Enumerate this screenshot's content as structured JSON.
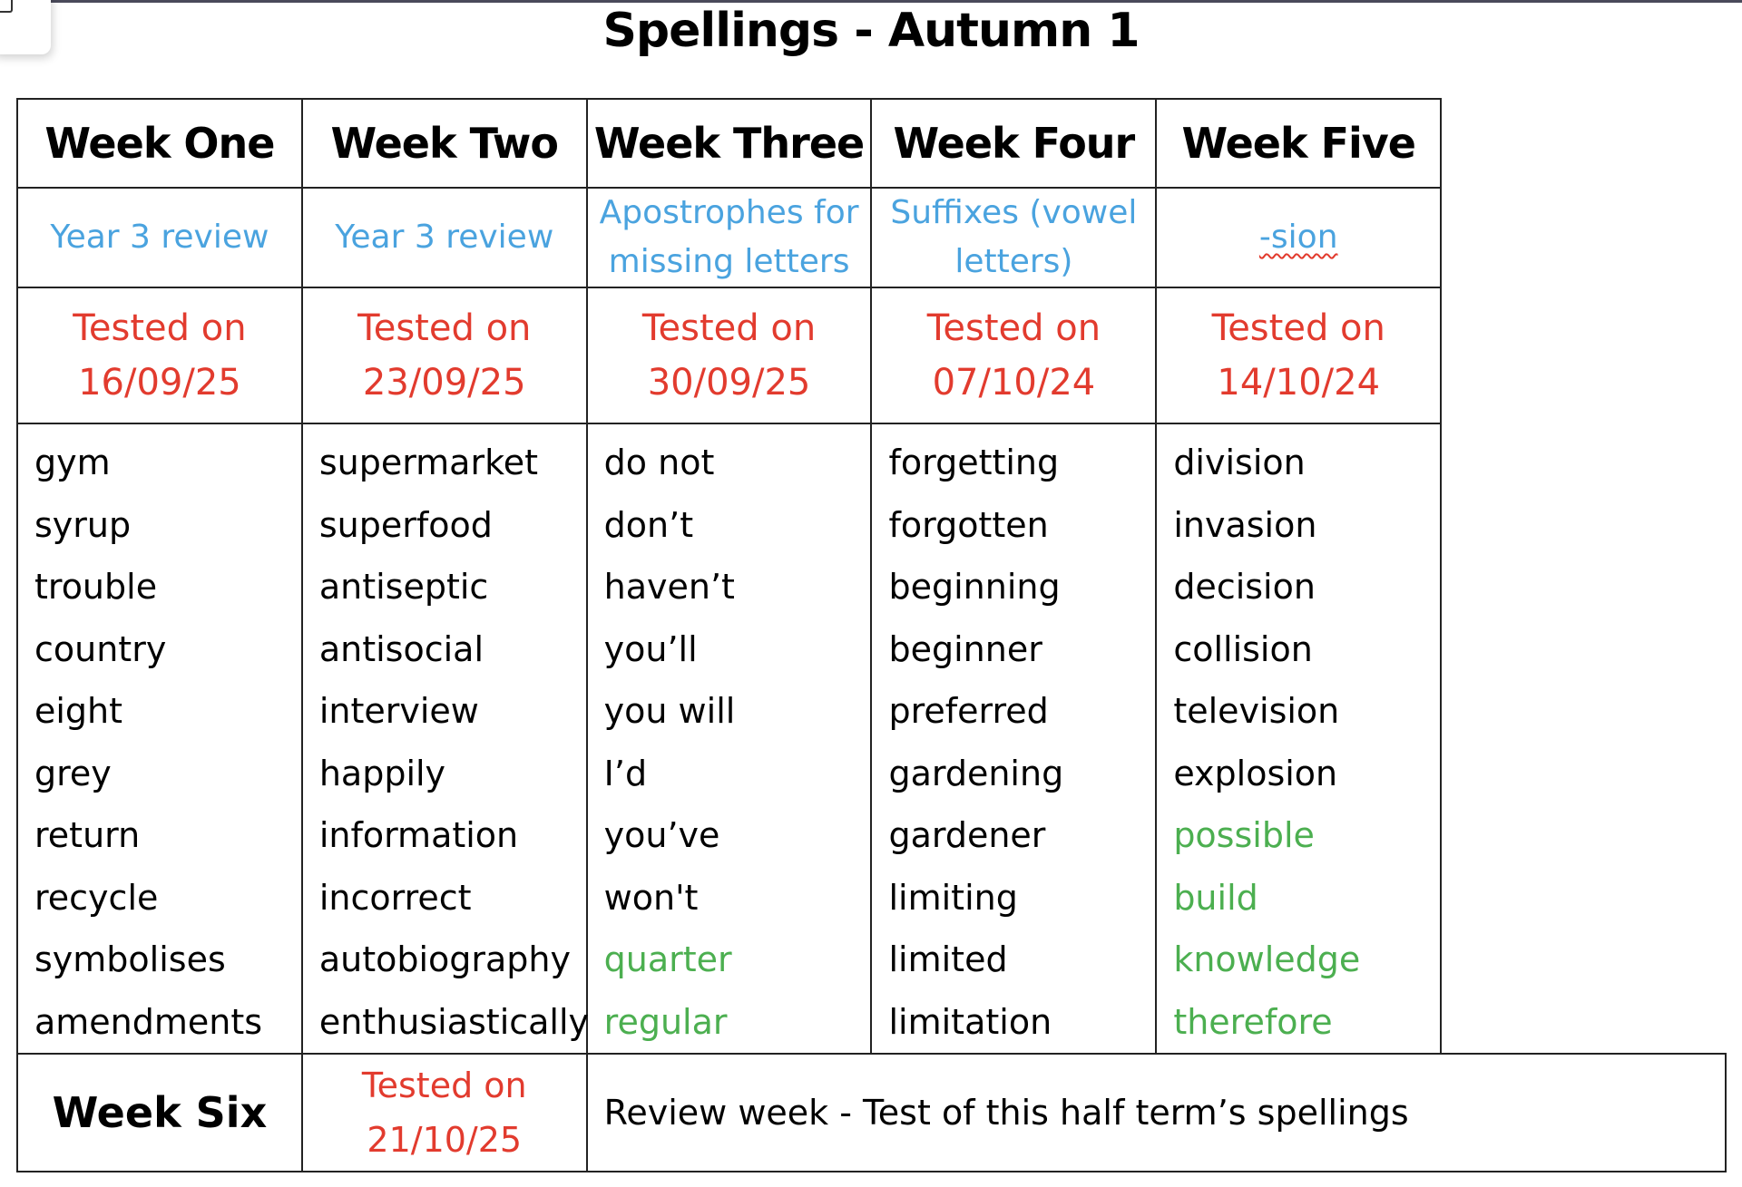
{
  "title": "Spellings - Autumn 1",
  "colors": {
    "topic": "#4aa3df",
    "tested": "#e23b2e",
    "highlight_word": "#4caf50"
  },
  "weeks": [
    {
      "label": "Week One",
      "topic": "Year 3 review",
      "tested_label": "Tested on",
      "tested_date": "16/09/25",
      "words": [
        {
          "w": "gym"
        },
        {
          "w": "syrup"
        },
        {
          "w": "trouble"
        },
        {
          "w": "country"
        },
        {
          "w": "eight"
        },
        {
          "w": "grey"
        },
        {
          "w": "return"
        },
        {
          "w": "recycle"
        },
        {
          "w": "symbolises"
        },
        {
          "w": "amendments"
        }
      ]
    },
    {
      "label": "Week Two",
      "topic": "Year 3 review",
      "tested_label": "Tested on",
      "tested_date": "23/09/25",
      "words": [
        {
          "w": "supermarket"
        },
        {
          "w": "superfood"
        },
        {
          "w": "antiseptic"
        },
        {
          "w": "antisocial"
        },
        {
          "w": "interview"
        },
        {
          "w": "happily"
        },
        {
          "w": "information"
        },
        {
          "w": "incorrect"
        },
        {
          "w": "autobiography"
        },
        {
          "w": "enthusiastically"
        }
      ]
    },
    {
      "label": "Week Three",
      "topic": "Apostrophes for missing letters",
      "tested_label": "Tested on",
      "tested_date": "30/09/25",
      "words": [
        {
          "w": "do not"
        },
        {
          "w": "don’t"
        },
        {
          "w": "haven’t"
        },
        {
          "w": "you’ll"
        },
        {
          "w": "you will"
        },
        {
          "w": "I’d"
        },
        {
          "w": "you’ve"
        },
        {
          "w": "won't"
        },
        {
          "w": "quarter",
          "green": true
        },
        {
          "w": "regular",
          "green": true
        }
      ]
    },
    {
      "label": "Week Four",
      "topic": "Suffixes (vowel letters)",
      "tested_label": "Tested on",
      "tested_date": "07/10/24",
      "words": [
        {
          "w": "forgetting"
        },
        {
          "w": "forgotten"
        },
        {
          "w": "beginning"
        },
        {
          "w": "beginner"
        },
        {
          "w": "preferred"
        },
        {
          "w": "gardening"
        },
        {
          "w": "gardener"
        },
        {
          "w": "limiting"
        },
        {
          "w": "limited"
        },
        {
          "w": "limitation"
        }
      ]
    },
    {
      "label": "Week Five",
      "topic": "-sion",
      "tested_label": "Tested on",
      "tested_date": "14/10/24",
      "words": [
        {
          "w": "division"
        },
        {
          "w": "invasion"
        },
        {
          "w": "decision"
        },
        {
          "w": "collision"
        },
        {
          "w": "television"
        },
        {
          "w": "explosion"
        },
        {
          "w": "possible",
          "green": true
        },
        {
          "w": "build",
          "green": true
        },
        {
          "w": "knowledge",
          "green": true
        },
        {
          "w": "therefore",
          "green": true
        }
      ]
    }
  ],
  "week_six": {
    "label": "Week Six",
    "tested_label": "Tested on",
    "tested_date": "21/10/25",
    "description": "Review week - Test of this half term’s spellings"
  }
}
